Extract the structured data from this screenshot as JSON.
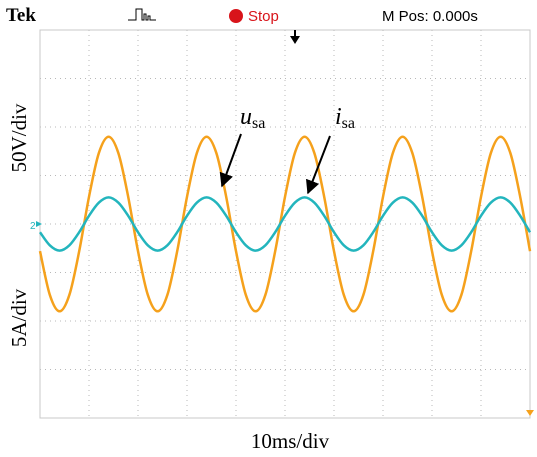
{
  "chart_data": {
    "type": "line",
    "header": {
      "brand": "Tek",
      "state": "Stop",
      "position": "M Pos: 0.000s"
    },
    "channel_marker": "2",
    "y_labels": [
      "50V/div",
      "5A/div"
    ],
    "x_label": "10ms/div",
    "annotations": [
      {
        "text": "u",
        "sub": "sa"
      },
      {
        "text": "i",
        "sub": "sa"
      }
    ],
    "xlim": [
      0,
      100
    ],
    "ylim": [
      -4,
      4
    ],
    "x": [
      0,
      2,
      4,
      6,
      8,
      10,
      12,
      14,
      16,
      18,
      20,
      22,
      24,
      26,
      28,
      30,
      32,
      34,
      36,
      38,
      40,
      42,
      44,
      46,
      48,
      50,
      52,
      54,
      56,
      58,
      60,
      62,
      64,
      66,
      68,
      70,
      72,
      74,
      76,
      78,
      80,
      82,
      84,
      86,
      88,
      90,
      92,
      94,
      96,
      98,
      100
    ],
    "series": [
      {
        "color": "#f5a11c",
        "values": [
          -0.56,
          -1.46,
          -1.8,
          -1.46,
          -0.56,
          0.56,
          1.46,
          1.8,
          1.46,
          0.56,
          -0.56,
          -1.46,
          -1.8,
          -1.46,
          -0.56,
          0.56,
          1.46,
          1.8,
          1.46,
          0.56,
          -0.56,
          -1.46,
          -1.8,
          -1.46,
          -0.56,
          0.56,
          1.46,
          1.8,
          1.46,
          0.56,
          -0.56,
          -1.46,
          -1.8,
          -1.46,
          -0.56,
          0.56,
          1.46,
          1.8,
          1.46,
          0.56,
          -0.56,
          -1.46,
          -1.8,
          -1.46,
          -0.56,
          0.56,
          1.46,
          1.8,
          1.46,
          0.56,
          -0.56
        ]
      },
      {
        "color": "#23b5bd",
        "values": [
          -0.17,
          -0.44,
          -0.55,
          -0.44,
          -0.17,
          0.17,
          0.44,
          0.55,
          0.44,
          0.17,
          -0.17,
          -0.44,
          -0.55,
          -0.44,
          -0.17,
          0.17,
          0.44,
          0.55,
          0.44,
          0.17,
          -0.17,
          -0.44,
          -0.55,
          -0.44,
          -0.17,
          0.17,
          0.44,
          0.55,
          0.44,
          0.17,
          -0.17,
          -0.44,
          -0.55,
          -0.44,
          -0.17,
          0.17,
          0.44,
          0.55,
          0.44,
          0.17,
          -0.17,
          -0.44,
          -0.55,
          -0.44,
          -0.17,
          0.17,
          0.44,
          0.55,
          0.44,
          0.17,
          -0.17
        ]
      }
    ]
  }
}
